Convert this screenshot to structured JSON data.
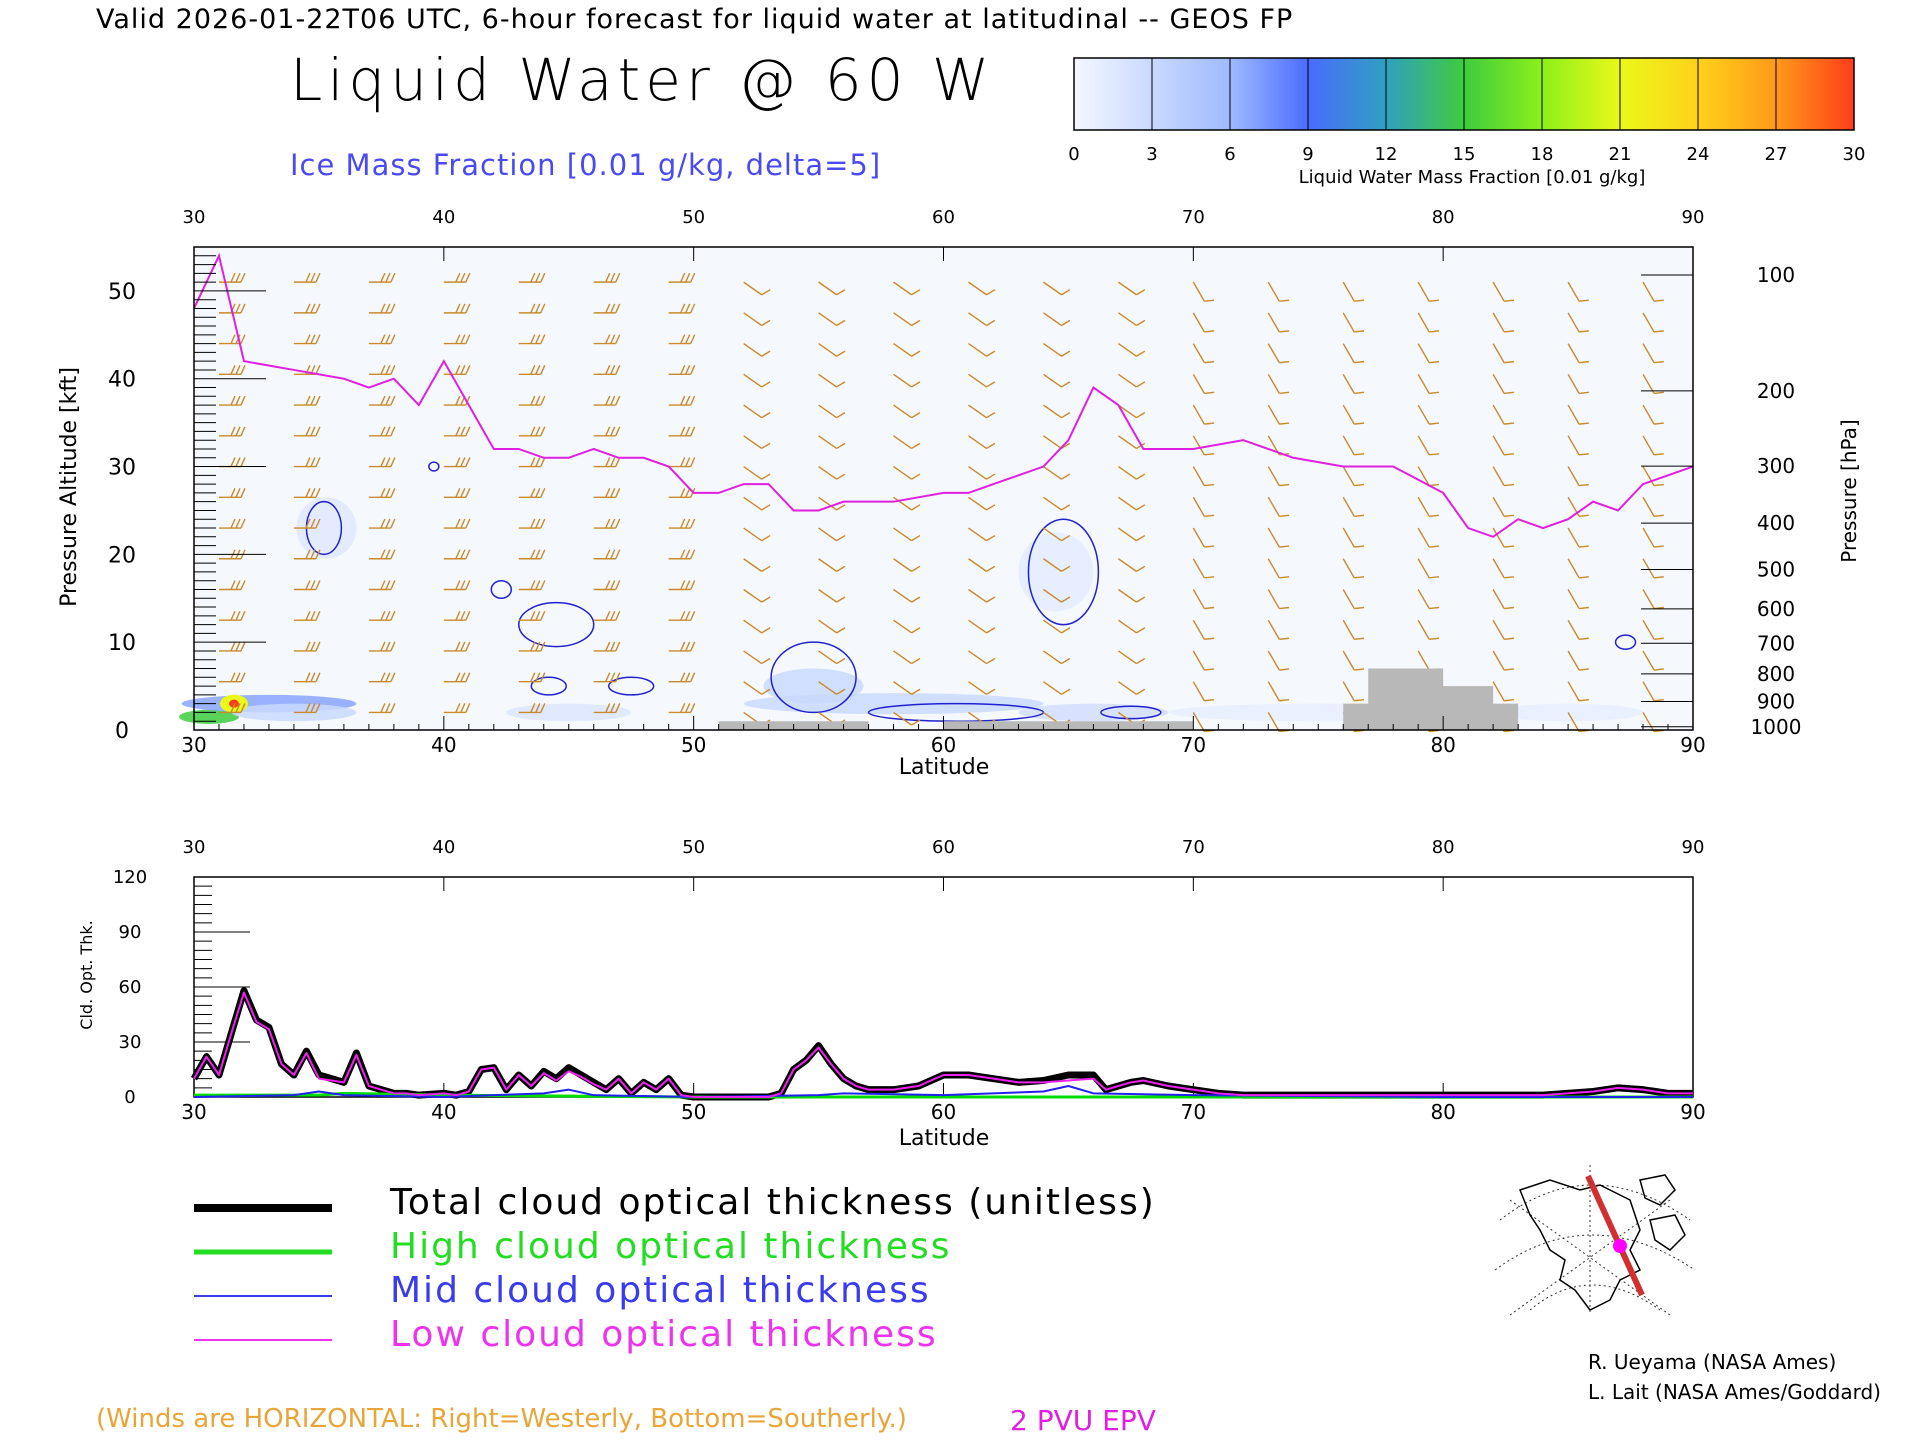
{
  "header": "Valid 2026-01-22T06 UTC, 6-hour forecast for liquid water at latitudinal -- GEOS FP",
  "title": "Liquid Water @ 60 W",
  "subtitle": "Ice Mass Fraction [0.01 g/kg, delta=5]",
  "colorbar": {
    "label": "Liquid Water Mass Fraction [0.01 g/kg]",
    "ticks": [
      "0",
      "3",
      "6",
      "9",
      "12",
      "15",
      "18",
      "21",
      "24",
      "27",
      "30"
    ],
    "colors": [
      "#f4f7ff",
      "#c9d9ff",
      "#9fbaff",
      "#4a6cff",
      "#2fa0c0",
      "#3ecc3e",
      "#8cf01a",
      "#eaf81a",
      "#ffd21a",
      "#ff9a1a",
      "#ff3d1a"
    ]
  },
  "chart_data": [
    {
      "type": "heatmap",
      "xlabel": "Latitude",
      "ylabel": "Pressure Altitude [kft]",
      "ylabel_right": "Pressure [hPa]",
      "x_ticks": [
        "30",
        "40",
        "50",
        "60",
        "70",
        "80",
        "90"
      ],
      "y_ticks": [
        "0",
        "10",
        "20",
        "30",
        "40",
        "50"
      ],
      "pressure_ticks": [
        "100",
        "200",
        "300",
        "400",
        "500",
        "600",
        "700",
        "800",
        "900",
        "1000"
      ],
      "xlim": [
        30,
        90
      ],
      "ylim": [
        0,
        55
      ],
      "epv_2pvu_kft": [
        [
          30,
          48
        ],
        [
          31,
          54
        ],
        [
          32,
          42
        ],
        [
          34,
          41
        ],
        [
          36,
          40
        ],
        [
          37,
          39
        ],
        [
          38,
          40
        ],
        [
          39,
          37
        ],
        [
          40,
          42
        ],
        [
          41,
          37
        ],
        [
          42,
          32
        ],
        [
          43,
          32
        ],
        [
          44,
          31
        ],
        [
          45,
          31
        ],
        [
          46,
          32
        ],
        [
          47,
          31
        ],
        [
          48,
          31
        ],
        [
          49,
          30
        ],
        [
          50,
          27
        ],
        [
          51,
          27
        ],
        [
          52,
          28
        ],
        [
          53,
          28
        ],
        [
          54,
          25
        ],
        [
          55,
          25
        ],
        [
          56,
          26
        ],
        [
          57,
          26
        ],
        [
          58,
          26
        ],
        [
          60,
          27
        ],
        [
          61,
          27
        ],
        [
          62,
          28
        ],
        [
          64,
          30
        ],
        [
          65,
          33
        ],
        [
          66,
          39
        ],
        [
          67,
          37
        ],
        [
          68,
          32
        ],
        [
          70,
          32
        ],
        [
          72,
          33
        ],
        [
          74,
          31
        ],
        [
          76,
          30
        ],
        [
          78,
          30
        ],
        [
          80,
          27
        ],
        [
          81,
          23
        ],
        [
          82,
          22
        ],
        [
          83,
          24
        ],
        [
          84,
          23
        ],
        [
          85,
          24
        ],
        [
          86,
          26
        ],
        [
          87,
          25
        ],
        [
          88,
          28
        ],
        [
          89,
          29
        ],
        [
          90,
          30
        ]
      ],
      "surface_kft": [
        [
          50,
          0
        ],
        [
          51,
          1
        ],
        [
          56,
          1
        ],
        [
          57,
          0
        ],
        [
          60,
          1
        ],
        [
          62,
          1
        ],
        [
          66,
          1
        ],
        [
          68,
          1
        ],
        [
          70,
          0
        ],
        [
          75,
          0
        ],
        [
          76,
          3
        ],
        [
          77,
          7
        ],
        [
          79,
          7
        ],
        [
          80,
          5
        ],
        [
          81,
          5
        ],
        [
          82,
          3
        ],
        [
          83,
          0
        ],
        [
          90,
          0
        ]
      ]
    },
    {
      "type": "line",
      "xlabel": "Latitude",
      "ylabel": "Cld. Opt. Thk.",
      "x_ticks": [
        "30",
        "40",
        "50",
        "60",
        "70",
        "80",
        "90"
      ],
      "y_ticks": [
        "0",
        "30",
        "60",
        "90",
        "120"
      ],
      "xlim": [
        30,
        90
      ],
      "ylim": [
        0,
        120
      ],
      "series": [
        {
          "name": "Total cloud optical thickness (unitless)",
          "color": "#000000",
          "x": [
            30,
            30.5,
            31,
            31.5,
            32,
            32.5,
            33,
            33.5,
            34,
            34.5,
            35,
            35.5,
            36,
            36.5,
            37,
            37.5,
            38,
            38.5,
            39,
            40,
            40.5,
            41,
            41.5,
            42,
            42.5,
            43,
            43.5,
            44,
            44.5,
            45,
            45.5,
            46,
            46.5,
            47,
            47.5,
            48,
            48.5,
            49,
            49.5,
            50,
            51,
            52,
            53,
            53.5,
            54,
            54.5,
            55,
            55.5,
            56,
            56.5,
            57,
            58,
            59,
            60,
            61,
            62,
            63,
            64,
            65,
            66,
            66.5,
            67,
            67.5,
            68,
            69,
            70,
            71,
            72,
            74,
            76,
            78,
            80,
            82,
            84,
            86,
            87,
            88,
            89,
            90
          ],
          "y": [
            10,
            22,
            12,
            35,
            58,
            42,
            38,
            18,
            12,
            25,
            12,
            10,
            8,
            24,
            6,
            4,
            2,
            2,
            1,
            2,
            1,
            3,
            15,
            16,
            4,
            12,
            6,
            14,
            10,
            16,
            12,
            8,
            4,
            10,
            2,
            8,
            4,
            10,
            1,
            0,
            0,
            0,
            0,
            2,
            15,
            20,
            28,
            18,
            10,
            6,
            4,
            4,
            6,
            12,
            12,
            10,
            8,
            9,
            12,
            12,
            4,
            6,
            8,
            9,
            6,
            4,
            2,
            1,
            1,
            1,
            1,
            1,
            1,
            1,
            3,
            5,
            4,
            2,
            2
          ]
        },
        {
          "name": "High cloud optical thickness",
          "color": "#00dd00",
          "x": [
            30,
            35,
            36,
            40,
            50,
            60,
            70,
            80,
            90
          ],
          "y": [
            1,
            1,
            2,
            1,
            0,
            0,
            0,
            0,
            0
          ]
        },
        {
          "name": "Mid cloud optical thickness",
          "color": "#2222ee",
          "x": [
            30,
            34,
            35,
            36,
            40,
            44,
            45,
            46,
            50,
            55,
            56,
            60,
            64,
            65,
            66,
            70,
            80,
            90
          ],
          "y": [
            0,
            1,
            3,
            1,
            0,
            2,
            4,
            1,
            0,
            1,
            2,
            1,
            3,
            6,
            2,
            1,
            0,
            0
          ]
        },
        {
          "name": "Low cloud optical thickness",
          "color": "#ee22ee",
          "x": [
            30,
            30.5,
            31,
            31.5,
            32,
            32.5,
            33,
            33.5,
            34,
            34.5,
            35,
            35.5,
            36,
            36.5,
            37,
            37.5,
            38,
            38.5,
            39,
            40,
            40.5,
            41,
            41.5,
            42,
            42.5,
            43,
            43.5,
            44,
            44.5,
            45,
            45.5,
            46,
            46.5,
            47,
            47.5,
            48,
            48.5,
            49,
            49.5,
            50,
            51,
            52,
            53,
            53.5,
            54,
            54.5,
            55,
            55.5,
            56,
            56.5,
            57,
            58,
            59,
            60,
            61,
            62,
            63,
            64,
            65,
            66,
            66.5,
            67,
            67.5,
            68,
            69,
            70,
            71,
            72,
            74,
            76,
            78,
            80,
            82,
            84,
            86,
            87,
            88,
            89,
            90
          ],
          "y": [
            10,
            22,
            12,
            35,
            57,
            41,
            37,
            18,
            12,
            24,
            10,
            9,
            8,
            23,
            6,
            4,
            2,
            2,
            1,
            2,
            1,
            3,
            15,
            16,
            4,
            12,
            6,
            13,
            9,
            14,
            11,
            7,
            4,
            10,
            2,
            8,
            4,
            10,
            1,
            0,
            0,
            0,
            0,
            2,
            15,
            20,
            27,
            18,
            10,
            6,
            4,
            4,
            6,
            12,
            12,
            10,
            8,
            8,
            9,
            10,
            4,
            6,
            8,
            9,
            6,
            4,
            2,
            1,
            1,
            1,
            1,
            1,
            1,
            1,
            3,
            5,
            4,
            2,
            2
          ]
        }
      ]
    }
  ],
  "legend": [
    {
      "label": "Total cloud optical thickness (unitless)",
      "color": "#000000"
    },
    {
      "label": "High cloud optical thickness",
      "color": "#22dd22"
    },
    {
      "label": "Mid cloud optical thickness",
      "color": "#3a3aee"
    },
    {
      "label": "Low cloud optical thickness",
      "color": "#ee33ee"
    }
  ],
  "credits": [
    "R. Ueyama (NASA Ames)",
    "L. Lait (NASA Ames/Goddard)"
  ],
  "wind_note": "(Winds are HORIZONTAL: Right=Westerly, Bottom=Southerly.)",
  "pv_label": "2 PVU EPV"
}
